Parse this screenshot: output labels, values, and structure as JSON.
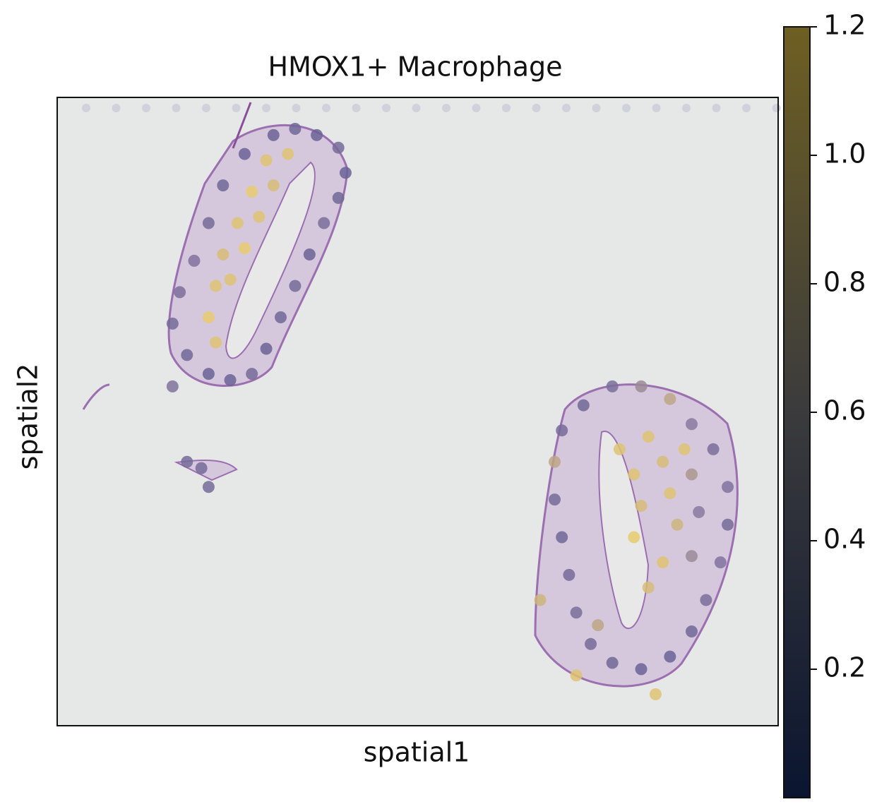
{
  "chart_data": {
    "type": "spatial",
    "title": "HMOX1+ Macrophage",
    "xlabel": "spatial1",
    "ylabel": "spatial2",
    "xlim": [
      0,
      100
    ],
    "ylim": [
      100,
      0
    ],
    "clim": [
      0,
      1.2
    ],
    "cticks": [
      0.2,
      0.4,
      0.6,
      0.8,
      {
        "value": 1,
        "label": "1.0"
      },
      1.2
    ],
    "colormap": [
      "#0b1530",
      "#3b3b3d",
      "#6e5f22"
    ],
    "spot_colormap": [
      "#4b4c8c",
      "#8a7aa0",
      "#efd26a"
    ],
    "series": [
      {
        "x": [
          30,
          33,
          36,
          39,
          40,
          39,
          37,
          35,
          33,
          31,
          29,
          27,
          24,
          21,
          18,
          16,
          17,
          19,
          21,
          23,
          26,
          29,
          27,
          25,
          23,
          22,
          21,
          22,
          32,
          30,
          28,
          26,
          24,
          16,
          18,
          20,
          21,
          70,
          73,
          77,
          81,
          85,
          88,
          91,
          93,
          93,
          92,
          90,
          88,
          85,
          81,
          77,
          74,
          72,
          71,
          70,
          69,
          69,
          78,
          80,
          81,
          80,
          82,
          84,
          85,
          86,
          84,
          82,
          87,
          88,
          89,
          88,
          75,
          72,
          83,
          67
        ],
        "y": [
          6,
          5,
          6,
          8,
          12,
          16,
          20,
          25,
          30,
          35,
          40,
          44,
          45,
          44,
          41,
          36,
          31,
          26,
          20,
          14,
          9,
          10,
          15,
          20,
          25,
          30,
          35,
          39,
          9,
          14,
          19,
          24,
          29,
          46,
          58,
          59,
          62,
          53,
          49,
          46,
          46,
          48,
          52,
          56,
          62,
          68,
          74,
          80,
          85,
          89,
          91,
          90,
          87,
          82,
          76,
          70,
          64,
          58,
          56,
          60,
          65,
          70,
          54,
          58,
          63,
          68,
          74,
          78,
          56,
          60,
          66,
          73,
          84,
          92,
          95,
          80
        ],
        "values": [
          0.3,
          0.35,
          0.3,
          0.4,
          0.3,
          0.35,
          0.45,
          0.3,
          0.4,
          0.35,
          0.3,
          0.4,
          0.3,
          0.3,
          0.35,
          0.4,
          0.45,
          0.5,
          0.4,
          0.35,
          0.3,
          1.1,
          1.15,
          1.1,
          1.05,
          1.1,
          1.15,
          1.1,
          1.1,
          1.05,
          1.1,
          1.15,
          1.1,
          0.5,
          0.4,
          0.4,
          0.4,
          0.4,
          0.35,
          0.45,
          0.7,
          0.9,
          0.6,
          0.45,
          0.5,
          0.4,
          0.5,
          0.45,
          0.35,
          0.3,
          0.3,
          0.35,
          0.4,
          0.45,
          0.4,
          0.35,
          0.4,
          0.9,
          1.1,
          1.1,
          1.05,
          1.15,
          1.1,
          1.05,
          1.1,
          1.0,
          1.1,
          1.05,
          1.1,
          0.8,
          0.6,
          0.7,
          0.9,
          1.1,
          1.1,
          1.0
        ]
      }
    ]
  }
}
